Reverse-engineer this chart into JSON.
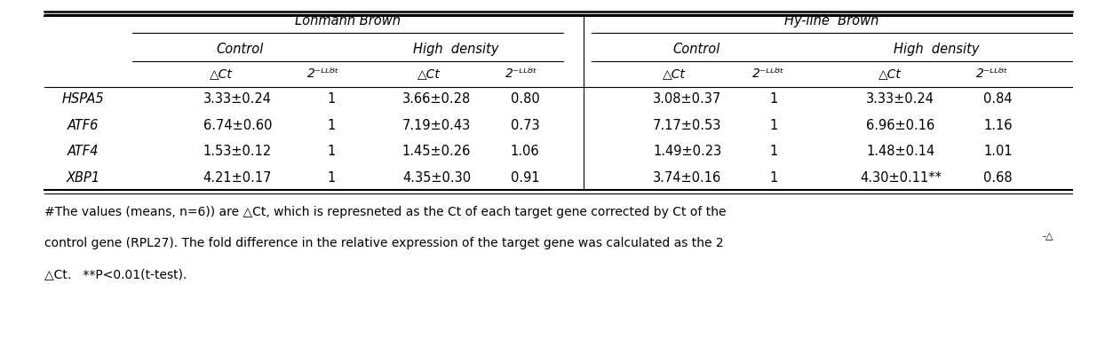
{
  "genes": [
    "HSPA5",
    "ATF6",
    "ATF4",
    "XBP1"
  ],
  "lohmann_control_dct": [
    "3.33±0.24",
    "6.74±0.60",
    "1.53±0.12",
    "4.21±0.17"
  ],
  "lohmann_control_fold": [
    "1",
    "1",
    "1",
    "1"
  ],
  "lohmann_high_dct": [
    "3.66±0.28",
    "7.19±0.43",
    "1.45±0.26",
    "4.35±0.30"
  ],
  "lohmann_high_fold": [
    "0.80",
    "0.73",
    "1.06",
    "0.91"
  ],
  "hyline_control_dct": [
    "3.08±0.37",
    "7.17±0.53",
    "1.49±0.23",
    "3.74±0.16"
  ],
  "hyline_control_fold": [
    "1",
    "1",
    "1",
    "1"
  ],
  "hyline_high_dct": [
    "3.33±0.24",
    "6.96±0.16",
    "1.48±0.14",
    "4.30±0.11**"
  ],
  "hyline_high_fold": [
    "0.84",
    "1.16",
    "1.01",
    "0.68"
  ],
  "footnote_line1": "#The values (means, n=6)) are △Ct, which is represneted as the Ct of each target gene corrected by Ct of the",
  "footnote_line2": "control gene (RPL27). The fold difference in the relative expression of the target gene was calculated as the 2",
  "footnote_line2_super": "-△",
  "footnote_line3": "△Ct.   **P<0.01(t-test).",
  "header_lohmann": "Lohmann Brown",
  "header_hyline": "Hy-line  Brown",
  "header_control": "Control",
  "header_high": "High  density",
  "col_dct": "△Ct",
  "col_fold": "2⁻ᴸᴸᴽᵗ",
  "bg_color": "#ffffff",
  "text_color": "#000000",
  "font_size": 10.5,
  "header_font_size": 10.5
}
